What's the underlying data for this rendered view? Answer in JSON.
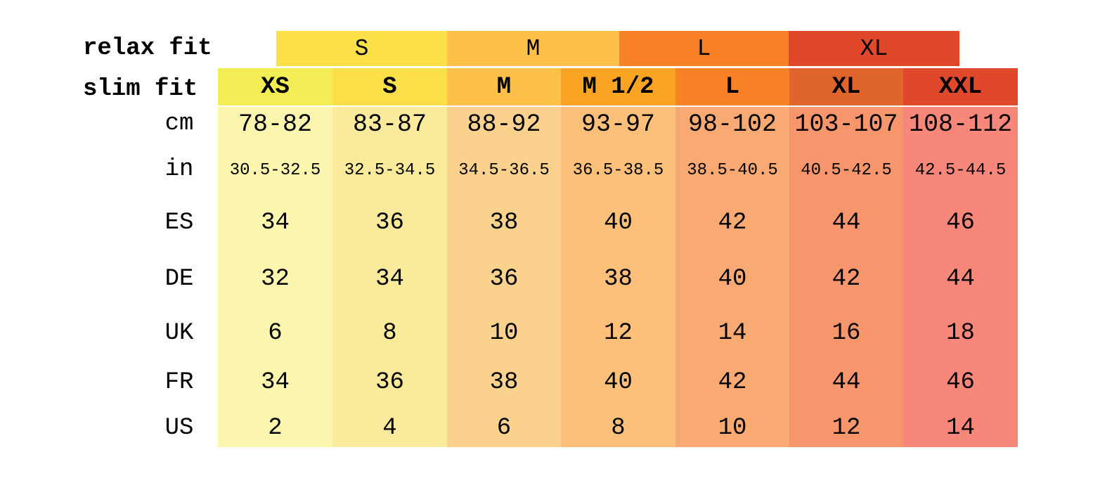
{
  "relax_fit": {
    "label": "relax fit",
    "sizes": [
      {
        "label": "S",
        "color": "#FBE04A"
      },
      {
        "label": "M",
        "color": "#FDC14A"
      },
      {
        "label": "L",
        "color": "#F88128"
      },
      {
        "label": "XL",
        "color": "#E0482C"
      }
    ]
  },
  "slim_fit": {
    "label": "slim fit",
    "sizes": [
      {
        "label": "XS",
        "color": "#F3EE55"
      },
      {
        "label": "S",
        "color": "#FBE04A"
      },
      {
        "label": "M",
        "color": "#FDC14A"
      },
      {
        "label": "M 1/2",
        "color": "#FBA424"
      },
      {
        "label": "L",
        "color": "#F88128"
      },
      {
        "label": "XL",
        "color": "#E0652C"
      },
      {
        "label": "XXL",
        "color": "#E0482C"
      }
    ]
  },
  "column_colors": [
    "#FCF5AE",
    "#FAEA9C",
    "#FAD28E",
    "#FCC07A",
    "#F9AA73",
    "#F7966C",
    "#F6877A"
  ],
  "rows": [
    {
      "label": "cm",
      "values": [
        "78-82",
        "83-87",
        "88-92",
        "93-97",
        "98-102",
        "103-107",
        "108-112"
      ]
    },
    {
      "label": "in",
      "values": [
        "30.5-32.5",
        "32.5-34.5",
        "34.5-36.5",
        "36.5-38.5",
        "38.5-40.5",
        "40.5-42.5",
        "42.5-44.5"
      ]
    },
    {
      "label": "ES",
      "values": [
        "34",
        "36",
        "38",
        "40",
        "42",
        "44",
        "46"
      ]
    },
    {
      "label": "DE",
      "values": [
        "32",
        "34",
        "36",
        "38",
        "40",
        "42",
        "44"
      ]
    },
    {
      "label": "UK",
      "values": [
        "6",
        "8",
        "10",
        "12",
        "14",
        "16",
        "18"
      ]
    },
    {
      "label": "FR",
      "values": [
        "34",
        "36",
        "38",
        "40",
        "42",
        "44",
        "46"
      ]
    },
    {
      "label": "US",
      "values": [
        "2",
        "4",
        "6",
        "8",
        "10",
        "12",
        "14"
      ]
    }
  ]
}
